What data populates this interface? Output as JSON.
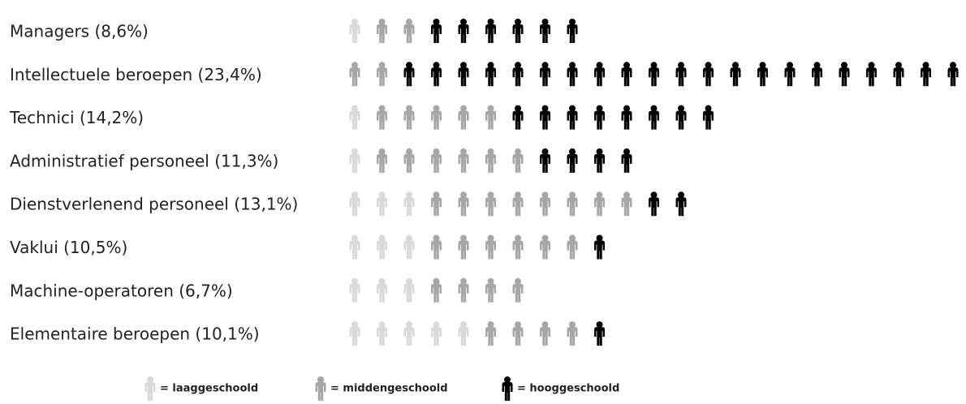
{
  "chart_data": {
    "type": "pictograph",
    "categories": [
      "Managers (8,6%)",
      "Intellectuele beroepen (23,4%)",
      "Technici (14,2%)",
      "Administratief personeel (11,3%)",
      "Dienstverlenend personeel (13,1%)",
      "Vaklui (10,5%)",
      "Machine-operatoren (6,7%)",
      "Elementaire beroepen (10,1%)"
    ],
    "series": [
      {
        "name": "= laaggeschoold",
        "color": "#d9d9d9",
        "values": [
          1,
          0,
          1,
          1,
          3,
          3,
          3,
          5
        ]
      },
      {
        "name": "= middengeschoold",
        "color": "#a6a6a6",
        "values": [
          2,
          2,
          5,
          6,
          8,
          6,
          4,
          4
        ]
      },
      {
        "name": "= hooggeschoold",
        "color": "#000000",
        "values": [
          6,
          21,
          8,
          4,
          2,
          1,
          0,
          1
        ]
      }
    ]
  }
}
